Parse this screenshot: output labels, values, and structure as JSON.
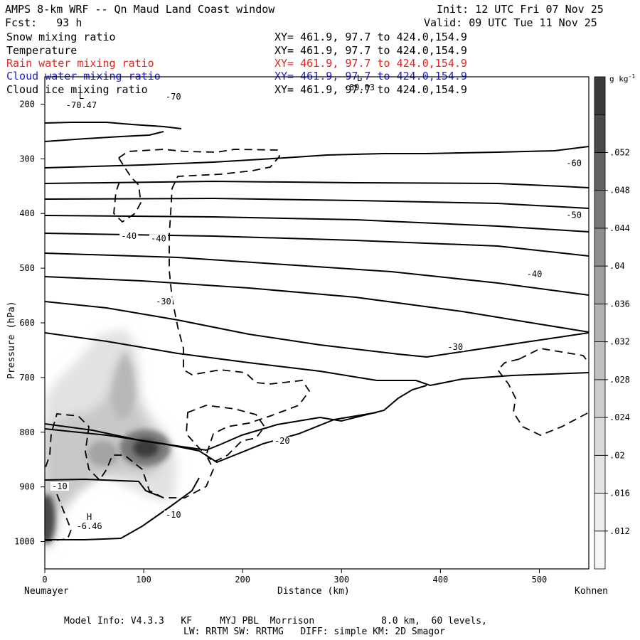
{
  "header": {
    "title": "AMPS 8-km WRF -- Qn Maud Land Coast window",
    "forecast": "Fcst:   93 h",
    "init": "Init: 12 UTC Fri 07 Nov 25",
    "valid": "Valid: 09 UTC Tue 11 Nov 25"
  },
  "fields": [
    {
      "name": "Snow mixing ratio",
      "xy": "XY= 461.9, 97.7 to 424.0,154.9",
      "color": "#000000"
    },
    {
      "name": "Temperature",
      "xy": "XY= 461.9, 97.7 to 424.0,154.9",
      "color": "#000000"
    },
    {
      "name": "Rain water mixing ratio",
      "xy": "XY= 461.9, 97.7 to 424.0,154.9",
      "color": "#e8231a"
    },
    {
      "name": "Cloud water mixing ratio",
      "xy": "XY= 461.9, 97.7 to 424.0,154.9",
      "color": "#2020cc"
    },
    {
      "name": "Cloud ice mixing ratio",
      "xy": "XY= 461.9, 97.7 to 424.0,154.9",
      "color": "#000000"
    }
  ],
  "footer": {
    "line1": "Model Info: V4.3.3   KF     MYJ PBL  Morrison            8.0 km,  60 levels,",
    "line2": "LW: RRTM SW: RRTMG   DIFF: simple KM: 2D Smagor"
  },
  "chart_data": {
    "type": "cross-section",
    "title": "AMPS 8-km WRF -- Qn Maud Land Coast window",
    "xlabel": "Distance (km)",
    "ylabel": "Pressure (hPa)",
    "xlim": [
      0,
      550
    ],
    "ylim": [
      150,
      1050
    ],
    "x_ticks": [
      0,
      100,
      200,
      300,
      400,
      500
    ],
    "y_ticks": [
      200,
      300,
      400,
      500,
      600,
      700,
      800,
      900,
      1000
    ],
    "left_endpoint": "Neumayer",
    "right_endpoint": "Kohnen",
    "colorbar": {
      "unit": "g kg",
      "unit_exp": "-1",
      "levels": [
        0.012,
        0.016,
        0.02,
        0.024,
        0.028,
        0.032,
        0.036,
        0.04,
        0.044,
        0.048,
        0.052
      ],
      "labels": [
        ".012",
        ".016",
        ".02",
        ".024",
        ".028",
        ".032",
        ".036",
        ".04",
        ".044",
        ".048",
        ".052"
      ],
      "colors": [
        "#f7f7f7",
        "#eeeeee",
        "#e4e4e4",
        "#d9d9d9",
        "#cdcdcd",
        "#c0c0c0",
        "#b1b1b1",
        "#a0a0a0",
        "#8d8d8d",
        "#787878",
        "#626262",
        "#4a4a4a",
        "#3a3a3a"
      ]
    },
    "temperature_contours": [
      {
        "label": "-70",
        "x": 130,
        "p": 190
      },
      {
        "label": "-60",
        "x": 535,
        "p": 312
      },
      {
        "label": "-50",
        "x": 535,
        "p": 407
      },
      {
        "label": "-40",
        "x": 85,
        "p": 445
      },
      {
        "label": "-40",
        "x": 115,
        "p": 450
      },
      {
        "label": "-40",
        "x": 495,
        "p": 515
      },
      {
        "label": "-30",
        "x": 120,
        "p": 565
      },
      {
        "label": "-30",
        "x": 415,
        "p": 648
      },
      {
        "label": "-20",
        "x": 240,
        "p": 820
      },
      {
        "label": "-10",
        "x": 15,
        "p": 903
      },
      {
        "label": "-10",
        "x": 130,
        "p": 955
      }
    ],
    "extrema": [
      {
        "type": "L",
        "value": "-70.47",
        "x": 37,
        "p": 190
      },
      {
        "type": "L",
        "value": "-69.03",
        "x": 318,
        "p": 158
      },
      {
        "type": "H",
        "value": "-6.46",
        "x": 45,
        "p": 960
      }
    ],
    "shading_maxima": [
      {
        "x": 100,
        "p": 820,
        "value": 0.052
      },
      {
        "x": 55,
        "p": 825,
        "value": 0.034
      },
      {
        "x": 80,
        "p": 680,
        "value": 0.026
      },
      {
        "x": 5,
        "p": 960,
        "value": 0.05
      }
    ]
  }
}
